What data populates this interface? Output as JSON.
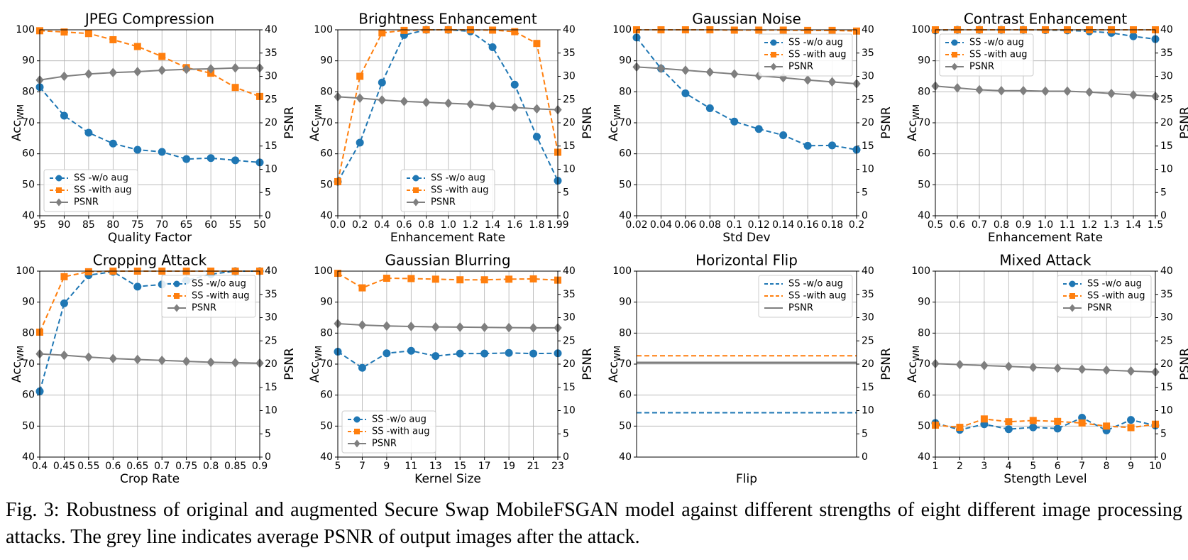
{
  "chart_data": [
    {
      "type": "line",
      "title": "JPEG Compression",
      "xlabel": "Quality Factor",
      "ylabel": "Acc",
      "ylabel_subscript": "WM",
      "y2label": "PSNR",
      "x": [
        95,
        90,
        85,
        80,
        75,
        70,
        65,
        60,
        55,
        50
      ],
      "xlim": [
        95,
        50
      ],
      "xticks": [
        95,
        90,
        85,
        80,
        75,
        70,
        65,
        60,
        55,
        50
      ],
      "ylim": [
        40,
        100
      ],
      "yticks": [
        40,
        50,
        60,
        70,
        80,
        90,
        100
      ],
      "y2lim": [
        0,
        40
      ],
      "y2ticks": [
        0,
        5,
        10,
        15,
        20,
        25,
        30,
        35,
        40
      ],
      "grid": true,
      "legend": "lower left",
      "series": [
        {
          "name": "SS -w/o aug",
          "color": "#1f77b4",
          "marker": "o",
          "linestyle": "dashed",
          "values": [
            81.5,
            72.3,
            66.8,
            63.3,
            61.3,
            60.6,
            58.3,
            58.6,
            57.9,
            57.2
          ]
        },
        {
          "name": "SS -with aug",
          "color": "#ff7f0e",
          "marker": "s",
          "linestyle": "dashed",
          "values": [
            99.7,
            99.3,
            98.8,
            96.8,
            94.6,
            91.4,
            87.8,
            86.0,
            81.4,
            78.5
          ]
        },
        {
          "name": "PSNR",
          "color": "#7f7f7f",
          "marker": "D",
          "linestyle": "solid",
          "axis": "y2",
          "values": [
            29.2,
            30.0,
            30.5,
            30.8,
            31.0,
            31.3,
            31.5,
            31.6,
            31.8,
            31.8
          ]
        }
      ]
    },
    {
      "type": "line",
      "title": "Brightness Enhancement",
      "xlabel": "Enhancement Rate",
      "ylabel": "Acc",
      "ylabel_subscript": "WM",
      "y2label": "PSNR",
      "x": [
        0,
        0.2,
        0.4,
        0.6,
        0.8,
        1.0,
        1.2,
        1.4,
        1.6,
        1.8,
        1.99
      ],
      "xlim": [
        0,
        1.99
      ],
      "xticks": [
        {
          "value": 0,
          "label": "0.0"
        },
        0.2,
        0.4,
        0.6,
        0.8,
        {
          "value": 1,
          "label": "1.0"
        },
        1.2,
        1.4,
        1.6,
        1.8,
        1.99
      ],
      "ylim": [
        40,
        100
      ],
      "yticks": [
        40,
        50,
        60,
        70,
        80,
        90,
        100
      ],
      "y2lim": [
        0,
        40
      ],
      "y2ticks": [
        0,
        5,
        10,
        15,
        20,
        25,
        30,
        35,
        40
      ],
      "grid": true,
      "legend": "lower center",
      "series": [
        {
          "name": "SS -w/o aug",
          "color": "#1f77b4",
          "marker": "o",
          "linestyle": "dashed",
          "values": [
            51.0,
            63.6,
            83.0,
            98.3,
            100,
            100,
            99.5,
            94.4,
            82.3,
            65.5,
            51.3
          ]
        },
        {
          "name": "SS -with aug",
          "color": "#ff7f0e",
          "marker": "s",
          "linestyle": "dashed",
          "values": [
            51.0,
            85.0,
            99.0,
            99.8,
            100,
            100,
            100,
            99.9,
            99.4,
            95.6,
            60.5
          ]
        },
        {
          "name": "PSNR",
          "color": "#7f7f7f",
          "marker": "D",
          "linestyle": "solid",
          "axis": "y2",
          "values": [
            25.6,
            25.3,
            24.9,
            24.6,
            24.4,
            24.2,
            24.0,
            23.6,
            23.3,
            23.0,
            22.8
          ]
        }
      ]
    },
    {
      "type": "line",
      "title": "Gaussian Noise",
      "xlabel": "Std Dev",
      "ylabel": "Acc",
      "ylabel_subscript": "WM",
      "y2label": "PSNR",
      "x": [
        0.02,
        0.04,
        0.06,
        0.08,
        0.1,
        0.12,
        0.14,
        0.16,
        0.18,
        0.2
      ],
      "xlim": [
        0.02,
        0.2
      ],
      "xticks": [
        0.02,
        0.04,
        0.06,
        0.08,
        0.1,
        0.12,
        0.14,
        0.16,
        0.18,
        0.2
      ],
      "ylim": [
        40,
        100
      ],
      "yticks": [
        40,
        50,
        60,
        70,
        80,
        90,
        100
      ],
      "y2lim": [
        0,
        40
      ],
      "y2ticks": [
        0,
        5,
        10,
        15,
        20,
        25,
        30,
        35,
        40
      ],
      "grid": true,
      "legend": "upper right",
      "series": [
        {
          "name": "SS -w/o aug",
          "color": "#1f77b4",
          "marker": "o",
          "linestyle": "dashed",
          "values": [
            97.5,
            87.5,
            79.5,
            74.7,
            70.4,
            68.0,
            66.0,
            62.6,
            62.7,
            61.3
          ]
        },
        {
          "name": "SS -with aug",
          "color": "#ff7f0e",
          "marker": "s",
          "linestyle": "dashed",
          "values": [
            100,
            100,
            100,
            100,
            99.9,
            99.9,
            99.9,
            99.8,
            99.8,
            99.6
          ]
        },
        {
          "name": "PSNR",
          "color": "#7f7f7f",
          "marker": "D",
          "linestyle": "solid",
          "axis": "y2",
          "values": [
            32.0,
            31.7,
            31.3,
            30.9,
            30.5,
            30.1,
            29.7,
            29.2,
            28.8,
            28.4
          ]
        }
      ]
    },
    {
      "type": "line",
      "title": "Contrast Enhancement",
      "xlabel": "Enhancement Rate",
      "ylabel": "Acc",
      "ylabel_subscript": "WM",
      "y2label": "PSNR",
      "x": [
        0.5,
        0.6,
        0.7,
        0.8,
        0.9,
        1.0,
        1.1,
        1.2,
        1.3,
        1.4,
        1.5
      ],
      "xlim": [
        0.5,
        1.5
      ],
      "xticks": [
        0.5,
        0.6,
        0.7,
        0.8,
        0.9,
        {
          "value": 1,
          "label": "1.0"
        },
        1.1,
        1.2,
        1.3,
        1.4,
        1.5
      ],
      "ylim": [
        40,
        100
      ],
      "yticks": [
        40,
        50,
        60,
        70,
        80,
        90,
        100
      ],
      "y2lim": [
        0,
        40
      ],
      "y2ticks": [
        0,
        5,
        10,
        15,
        20,
        25,
        30,
        35,
        40
      ],
      "grid": true,
      "legend": "upper left",
      "series": [
        {
          "name": "SS -w/o aug",
          "color": "#1f77b4",
          "marker": "o",
          "linestyle": "dashed",
          "values": [
            99.8,
            100,
            100,
            100,
            100,
            99.9,
            99.8,
            99.5,
            99.0,
            97.9,
            97.0
          ]
        },
        {
          "name": "SS -with aug",
          "color": "#ff7f0e",
          "marker": "s",
          "linestyle": "dashed",
          "values": [
            100,
            100,
            100,
            100,
            100,
            100,
            100,
            100,
            100,
            100,
            100
          ]
        },
        {
          "name": "PSNR",
          "color": "#7f7f7f",
          "marker": "D",
          "linestyle": "solid",
          "axis": "y2",
          "values": [
            27.9,
            27.5,
            27.1,
            26.9,
            26.9,
            26.8,
            26.8,
            26.6,
            26.3,
            26.0,
            25.7
          ]
        }
      ]
    },
    {
      "type": "line",
      "title": "Cropping Attack",
      "xlabel": "Crop Rate",
      "ylabel": "Acc",
      "ylabel_subscript": "WM",
      "y2label": "PSNR",
      "categories": [
        "0.4",
        "0.45",
        "0.55",
        "0.6",
        "0.65",
        "0.7",
        "0.75",
        "0.8",
        "0.85",
        "0.9"
      ],
      "ylim": [
        40,
        100
      ],
      "yticks": [
        40,
        50,
        60,
        70,
        80,
        90,
        100
      ],
      "y2lim": [
        0,
        40
      ],
      "y2ticks": [
        0,
        5,
        10,
        15,
        20,
        25,
        30,
        35,
        40
      ],
      "grid": true,
      "legend": "upper right",
      "series": [
        {
          "name": "SS -w/o aug",
          "color": "#1f77b4",
          "marker": "o",
          "linestyle": "dashed",
          "values": [
            61.2,
            89.6,
            98.7,
            99.8,
            95.0,
            95.7,
            97.0,
            99.0,
            100,
            100
          ]
        },
        {
          "name": "SS -with aug",
          "color": "#ff7f0e",
          "marker": "s",
          "linestyle": "dashed",
          "values": [
            80.3,
            98.2,
            99.8,
            100,
            100,
            100,
            100,
            100,
            100,
            100
          ]
        },
        {
          "name": "PSNR",
          "color": "#7f7f7f",
          "marker": "D",
          "linestyle": "solid",
          "axis": "y2",
          "values": [
            22.2,
            21.9,
            21.5,
            21.2,
            21.0,
            20.8,
            20.6,
            20.4,
            20.3,
            20.2
          ]
        }
      ]
    },
    {
      "type": "line",
      "title": "Gaussian Blurring",
      "xlabel": "Kernel Size",
      "ylabel": "Acc",
      "ylabel_subscript": "WM",
      "y2label": "PSNR",
      "x": [
        5,
        7,
        9,
        11,
        13,
        15,
        17,
        19,
        21,
        23
      ],
      "xlim": [
        5,
        23
      ],
      "xticks": [
        5,
        7,
        9,
        11,
        13,
        15,
        17,
        19,
        21,
        23
      ],
      "ylim": [
        40,
        100
      ],
      "yticks": [
        40,
        50,
        60,
        70,
        80,
        90,
        100
      ],
      "y2lim": [
        0,
        40
      ],
      "y2ticks": [
        0,
        5,
        10,
        15,
        20,
        25,
        30,
        35,
        40
      ],
      "grid": true,
      "legend": "lower left",
      "series": [
        {
          "name": "SS -w/o aug",
          "color": "#1f77b4",
          "marker": "o",
          "linestyle": "dashed",
          "values": [
            74.0,
            68.8,
            73.5,
            74.3,
            72.6,
            73.4,
            73.4,
            73.6,
            73.4,
            73.5
          ]
        },
        {
          "name": "SS -with aug",
          "color": "#ff7f0e",
          "marker": "s",
          "linestyle": "dashed",
          "values": [
            99.3,
            94.6,
            97.7,
            97.6,
            97.4,
            97.2,
            97.2,
            97.4,
            97.5,
            97.1
          ]
        },
        {
          "name": "PSNR",
          "color": "#7f7f7f",
          "marker": "D",
          "linestyle": "solid",
          "axis": "y2",
          "values": [
            28.7,
            28.4,
            28.2,
            28.1,
            28.0,
            27.95,
            27.9,
            27.85,
            27.8,
            27.8
          ]
        }
      ]
    },
    {
      "type": "line",
      "title": "Horizontal Flip",
      "xlabel": "Flip",
      "ylabel": "Acc",
      "ylabel_subscript": "WM",
      "y2label": "PSNR",
      "ylim": [
        40,
        100
      ],
      "yticks": [
        40,
        50,
        60,
        70,
        80,
        90,
        100
      ],
      "y2lim": [
        0,
        40
      ],
      "y2ticks": [
        0,
        5,
        10,
        15,
        20,
        25,
        30,
        35,
        40
      ],
      "grid": true,
      "legend": "upper right",
      "series": [
        {
          "name": "SS -w/o aug",
          "color": "#1f77b4",
          "linestyle": "dashed",
          "values": [
            54.3
          ]
        },
        {
          "name": "SS -with aug",
          "color": "#ff7f0e",
          "linestyle": "dashed",
          "values": [
            72.7
          ]
        },
        {
          "name": "PSNR",
          "color": "#7f7f7f",
          "linestyle": "solid",
          "axis": "y2",
          "values": [
            20.3
          ]
        }
      ]
    },
    {
      "type": "line",
      "title": "Mixed Attack",
      "xlabel": "Stength Level",
      "ylabel": "Acc",
      "ylabel_subscript": "WM",
      "y2label": "PSNR",
      "x": [
        1,
        2,
        3,
        4,
        5,
        6,
        7,
        8,
        9,
        10
      ],
      "xlim": [
        1,
        10
      ],
      "xticks": [
        1,
        2,
        3,
        4,
        5,
        6,
        7,
        8,
        9,
        10
      ],
      "ylim": [
        40,
        100
      ],
      "yticks": [
        40,
        50,
        60,
        70,
        80,
        90,
        100
      ],
      "y2lim": [
        0,
        40
      ],
      "y2ticks": [
        0,
        5,
        10,
        15,
        20,
        25,
        30,
        35,
        40
      ],
      "grid": true,
      "legend": "upper right",
      "series": [
        {
          "name": "SS -w/o aug",
          "color": "#1f77b4",
          "marker": "o",
          "linestyle": "dashed",
          "values": [
            51.0,
            48.8,
            50.6,
            49.0,
            49.6,
            49.2,
            52.7,
            48.6,
            52.0,
            50.2
          ]
        },
        {
          "name": "SS -with aug",
          "color": "#ff7f0e",
          "marker": "s",
          "linestyle": "dashed",
          "values": [
            50.3,
            49.6,
            52.3,
            51.4,
            51.8,
            51.5,
            51.0,
            50.0,
            49.5,
            50.6
          ]
        },
        {
          "name": "PSNR",
          "color": "#7f7f7f",
          "marker": "D",
          "linestyle": "solid",
          "axis": "y2",
          "values": [
            20.1,
            19.9,
            19.7,
            19.5,
            19.3,
            19.1,
            18.9,
            18.7,
            18.5,
            18.3
          ]
        }
      ]
    }
  ],
  "caption": "Fig. 3: Robustness of original and augmented Secure Swap MobileFSGAN model against different strengths of eight different image processing attacks. The grey line indicates average PSNR of output images after the attack."
}
